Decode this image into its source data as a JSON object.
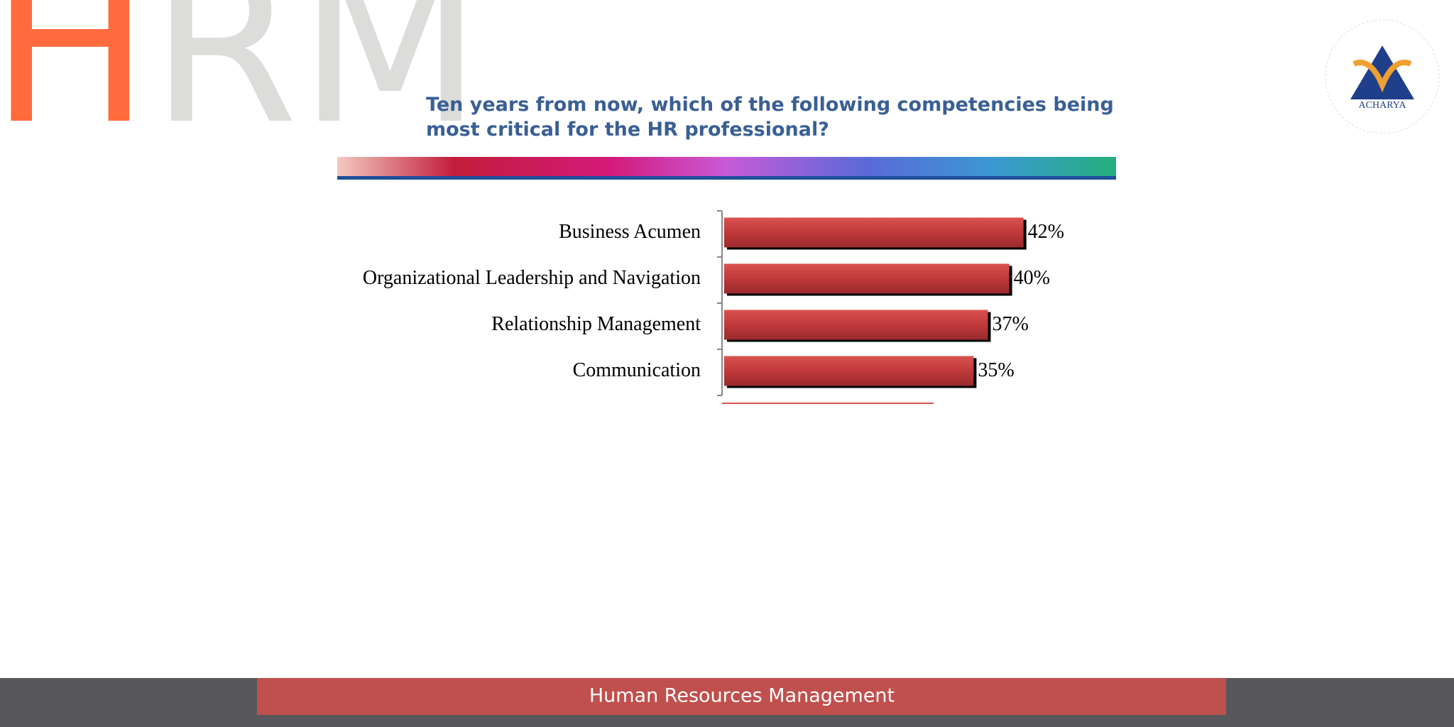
{
  "header": {
    "logo": [
      "H",
      "RM"
    ],
    "brand": "ACHARYA"
  },
  "chart_data": {
    "type": "hbar",
    "title": "Ten years from now, which of the following competencies being most critical for the HR professional?",
    "categories": [
      "Business Acumen",
      "Organizational Leadership and Navigation",
      "Relationship Management",
      "Communication"
    ],
    "values": [
      42,
      40,
      37,
      35
    ],
    "value_labels": [
      "42%",
      "40%",
      "37%",
      "35%"
    ],
    "color": "#c0393b",
    "xlim": [
      0,
      50
    ]
  },
  "footer": "Human Resources Management"
}
